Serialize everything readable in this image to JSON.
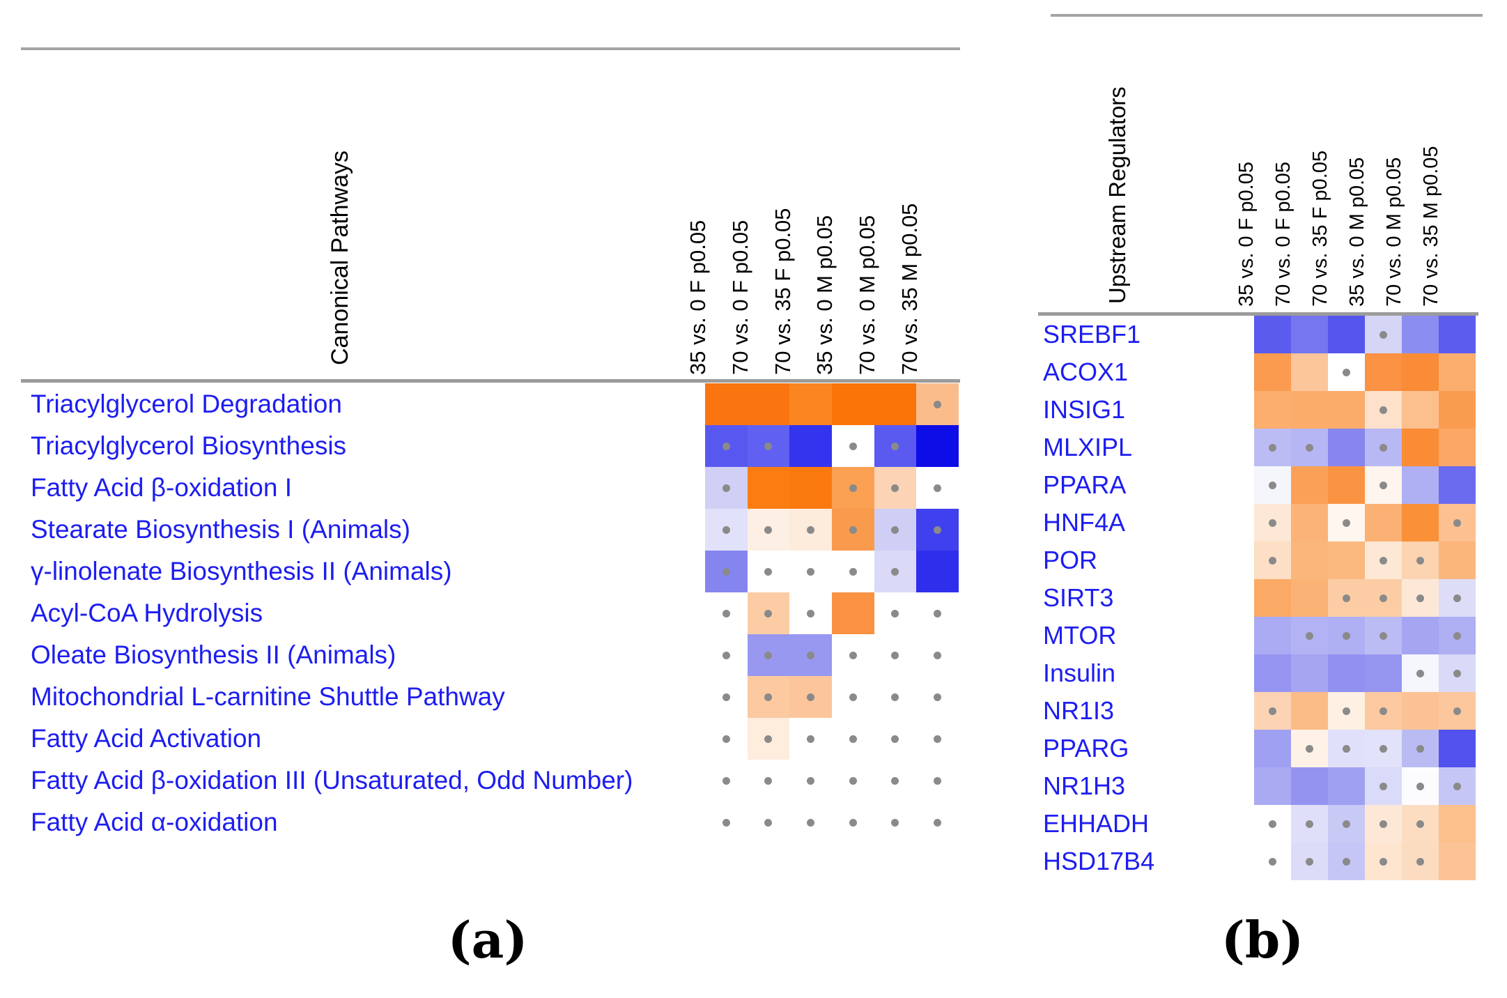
{
  "chart_data": [
    {
      "type": "heatmap",
      "panel": "a",
      "caption": "(a)",
      "title": "Canonical Pathways",
      "legend": "orange = positive, blue = negative, white = none, gray dot marker in cell",
      "columns": [
        "35 vs. 0 F p0.05",
        "70 vs. 0 F p0.05",
        "70 vs. 35 F p0.05",
        "35 vs. 0 M p0.05",
        "70 vs. 0 M p0.05",
        "70 vs. 35 M p0.05"
      ],
      "rows": [
        "Triacylglycerol Degradation",
        "Triacylglycerol Biosynthesis",
        "Fatty Acid β-oxidation I",
        "Stearate Biosynthesis I (Animals)",
        "γ-linolenate Biosynthesis II (Animals)",
        "Acyl-CoA Hydrolysis",
        "Oleate Biosynthesis II (Animals)",
        "Mitochondrial L-carnitine Shuttle Pathway",
        "Fatty Acid Activation",
        "Fatty Acid β-oxidation III (Unsaturated, Odd Number)",
        "Fatty Acid α-oxidation"
      ],
      "cell_colors": [
        [
          "#fa7410",
          "#fa7410",
          "#fb8521",
          "#fa7408",
          "#fa7408",
          "#fbbc8c"
        ],
        [
          "#5858f0",
          "#6060f2",
          "#3434ee",
          "#ffffff",
          "#5a5af1",
          "#0d0de8"
        ],
        [
          "#d0d0f6",
          "#fb7d12",
          "#fb7a10",
          "#faa154",
          "#fdd3b5",
          "#ffffff"
        ],
        [
          "#e1e1f9",
          "#fdefe3",
          "#fdebdc",
          "#fa9a4d",
          "#cfcff6",
          "#4040ee"
        ],
        [
          "#8585f0",
          "#ffffff",
          "#ffffff",
          "#ffffff",
          "#dadaf8",
          "#2e2eec"
        ],
        [
          "#ffffff",
          "#fccda5",
          "#ffffff",
          "#fa9143",
          "#ffffff",
          "#ffffff"
        ],
        [
          "#ffffff",
          "#9898f1",
          "#9898f1",
          "#ffffff",
          "#ffffff",
          "#ffffff"
        ],
        [
          "#ffffff",
          "#fcc9a0",
          "#fcc59b",
          "#ffffff",
          "#ffffff",
          "#ffffff"
        ],
        [
          "#ffffff",
          "#feecdd",
          "#ffffff",
          "#ffffff",
          "#ffffff",
          "#ffffff"
        ],
        [
          "#ffffff",
          "#ffffff",
          "#ffffff",
          "#ffffff",
          "#ffffff",
          "#ffffff"
        ],
        [
          "#ffffff",
          "#ffffff",
          "#ffffff",
          "#ffffff",
          "#ffffff",
          "#ffffff"
        ]
      ],
      "cell_dots": [
        [
          false,
          false,
          false,
          false,
          false,
          true
        ],
        [
          true,
          true,
          false,
          true,
          true,
          false
        ],
        [
          true,
          false,
          false,
          true,
          true,
          true
        ],
        [
          true,
          true,
          true,
          true,
          true,
          true
        ],
        [
          true,
          true,
          true,
          true,
          true,
          false
        ],
        [
          true,
          true,
          true,
          false,
          true,
          true
        ],
        [
          true,
          true,
          true,
          true,
          true,
          true
        ],
        [
          true,
          true,
          true,
          true,
          true,
          true
        ],
        [
          true,
          true,
          true,
          true,
          true,
          true
        ],
        [
          true,
          true,
          true,
          true,
          true,
          true
        ],
        [
          true,
          true,
          true,
          true,
          true,
          true
        ]
      ]
    },
    {
      "type": "heatmap",
      "panel": "b",
      "caption": "(b)",
      "title": "Upstream Regulators",
      "legend": "orange = positive, blue = negative, white = none, gray dot marker in cell",
      "columns": [
        "35 vs. 0 F p0.05",
        "70 vs. 0 F p0.05",
        "70 vs. 35 F p0.05",
        "35 vs. 0 M p0.05",
        "70 vs. 0 M p0.05",
        "70 vs. 35 M p0.05"
      ],
      "rows": [
        "SREBF1",
        "ACOX1",
        "INSIG1",
        "MLXIPL",
        "PPARA",
        "HNF4A",
        "POR",
        "SIRT3",
        "MTOR",
        "Insulin",
        "NR1I3",
        "PPARG",
        "NR1H3",
        "EHHADH",
        "HSD17B4"
      ],
      "cell_colors": [
        [
          "#5b5bee",
          "#7576f0",
          "#5556ee",
          "#d5d5f6",
          "#8c8df1",
          "#5c5cef"
        ],
        [
          "#fa9b50",
          "#fcc59a",
          "#ffffff",
          "#fa9143",
          "#fa8c38",
          "#fbae6e"
        ],
        [
          "#fbae6e",
          "#fbac6a",
          "#fbac6a",
          "#fde1ca",
          "#fcbf8e",
          "#fa9c50"
        ],
        [
          "#bcbcf5",
          "#b6b6f4",
          "#8686ee",
          "#b8b8f4",
          "#fa8c35",
          "#fba765"
        ],
        [
          "#f5f5fc",
          "#fba157",
          "#fa9342",
          "#fef5ee",
          "#afaff3",
          "#6b6bef"
        ],
        [
          "#fde8d6",
          "#fbb377",
          "#fef6ef",
          "#fbb174",
          "#fa9037",
          "#fcc091"
        ],
        [
          "#fddfc5",
          "#fbb67c",
          "#fbb97f",
          "#fde8d5",
          "#fcd4b2",
          "#fbb67c"
        ],
        [
          "#fbaa65",
          "#fbb275",
          "#fccda5",
          "#fccda5",
          "#fde8d7",
          "#ddddf8"
        ],
        [
          "#ababf3",
          "#b2b2f4",
          "#afaff3",
          "#bcbcf5",
          "#a5a5f2",
          "#afaff3"
        ],
        [
          "#9595f1",
          "#a5a5f2",
          "#9191f0",
          "#9696f1",
          "#f6f6fd",
          "#d9d9f8"
        ],
        [
          "#fcd4b4",
          "#fbbc86",
          "#fef0e3",
          "#fcc9a0",
          "#fcc295",
          "#fcc79c"
        ],
        [
          "#a0a0f2",
          "#fef2e6",
          "#e0e0fa",
          "#e2e2fa",
          "#bbbbf4",
          "#5252ee"
        ],
        [
          "#aaaaf3",
          "#9494f0",
          "#a0a0f2",
          "#dadaf9",
          "#fcfcfe",
          "#c6c6f6"
        ],
        [
          "#ffffff",
          "#dfdff9",
          "#c9c9f6",
          "#fde8d8",
          "#fcddc2",
          "#fbc08c"
        ],
        [
          "#ffffff",
          "#dcdcf9",
          "#c6c6f6",
          "#fde5d0",
          "#fcdcc0",
          "#fbc396"
        ]
      ],
      "cell_dots": [
        [
          false,
          false,
          false,
          true,
          false,
          false
        ],
        [
          false,
          false,
          true,
          false,
          false,
          false
        ],
        [
          false,
          false,
          false,
          true,
          false,
          false
        ],
        [
          true,
          true,
          false,
          true,
          false,
          false
        ],
        [
          true,
          false,
          false,
          true,
          false,
          false
        ],
        [
          true,
          false,
          true,
          false,
          false,
          true
        ],
        [
          true,
          false,
          false,
          true,
          true,
          false
        ],
        [
          false,
          false,
          true,
          true,
          true,
          true
        ],
        [
          false,
          true,
          true,
          true,
          false,
          true
        ],
        [
          false,
          false,
          false,
          false,
          true,
          true
        ],
        [
          true,
          false,
          true,
          true,
          false,
          true
        ],
        [
          false,
          true,
          true,
          true,
          true,
          false
        ],
        [
          false,
          false,
          false,
          true,
          true,
          true
        ],
        [
          true,
          true,
          true,
          true,
          true,
          false
        ],
        [
          true,
          true,
          true,
          true,
          true,
          false
        ]
      ]
    }
  ],
  "styles": {
    "row_label_color": "#1d1df0",
    "header_text_color": "#000000",
    "rule_color": "#a4a4a4",
    "dot_color": "#8a8a8a",
    "background": "#ffffff"
  }
}
